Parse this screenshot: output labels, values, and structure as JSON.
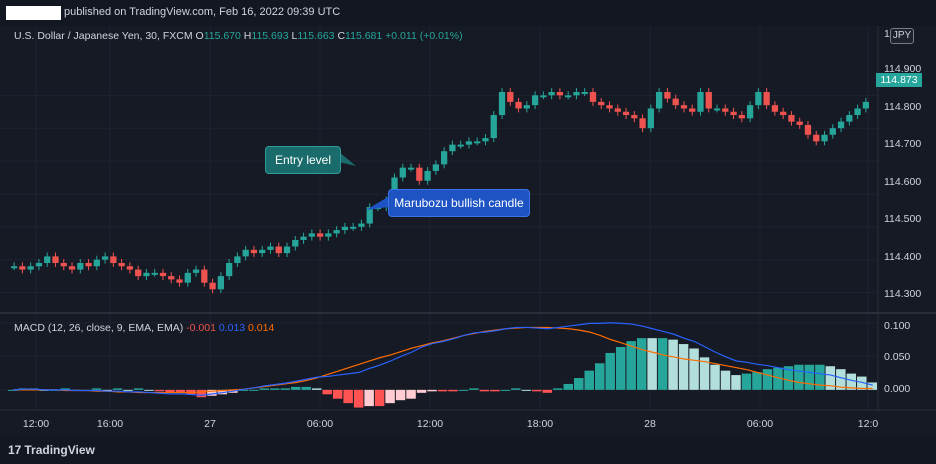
{
  "header": {
    "published_text": "published on TradingView.com, Feb 16, 2022 09:39 UTC"
  },
  "symbol": {
    "name": "U.S. Dollar / Japanese Yen, 30, FXCM",
    "open_label": "O",
    "open": "115.670",
    "high_label": "H",
    "high": "115.693",
    "low_label": "L",
    "low": "115.663",
    "close_label": "C",
    "close": "115.681",
    "change": "+0.011 (+0.01%)"
  },
  "currency_button": "JPY",
  "last_price": "114.873",
  "price_axis": [
    "114.900",
    "114.800",
    "114.700",
    "114.600",
    "114.500",
    "114.400",
    "114.300"
  ],
  "price_axis_top": "1",
  "macd": {
    "label": "MACD (12, 26, close, 9, EMA, EMA)",
    "hist_value": "-0.001",
    "macd_value": "0.013",
    "signal_value": "0.014",
    "axis": [
      "0.100",
      "0.050",
      "0.000"
    ]
  },
  "time_axis": [
    "12:00",
    "16:00",
    "27",
    "06:00",
    "12:00",
    "18:00",
    "28",
    "06:00",
    "12:0"
  ],
  "annotations": {
    "entry": "Entry level",
    "marubozu": "Marubozu bullish candle"
  },
  "footer": {
    "logo_mark": "17",
    "logo_text": "TradingView"
  },
  "colors": {
    "up": "#26a69a",
    "down": "#ef5350",
    "macd": "#2962ff",
    "signal": "#ff6d00",
    "background": "#161a25"
  },
  "chart_data": {
    "type": "candlestick",
    "symbol": "USDJPY",
    "ylim": [
      114.25,
      115.05
    ],
    "candles_close": [
      114.38,
      114.37,
      114.38,
      114.39,
      114.41,
      114.39,
      114.38,
      114.37,
      114.39,
      114.38,
      114.4,
      114.41,
      114.39,
      114.38,
      114.37,
      114.35,
      114.36,
      114.36,
      114.35,
      114.34,
      114.33,
      114.36,
      114.37,
      114.33,
      114.31,
      114.35,
      114.39,
      114.41,
      114.43,
      114.42,
      114.43,
      114.44,
      114.42,
      114.44,
      114.46,
      114.47,
      114.48,
      114.47,
      114.48,
      114.49,
      114.5,
      114.5,
      114.51,
      114.56,
      114.56,
      114.58,
      114.65,
      114.68,
      114.68,
      114.64,
      114.67,
      114.69,
      114.73,
      114.75,
      114.75,
      114.76,
      114.76,
      114.77,
      114.84,
      114.91,
      114.88,
      114.86,
      114.87,
      114.9,
      114.9,
      114.91,
      114.9,
      114.9,
      114.91,
      114.91,
      114.88,
      114.87,
      114.86,
      114.85,
      114.84,
      114.83,
      114.8,
      114.86,
      114.91,
      114.89,
      114.87,
      114.86,
      114.85,
      114.91,
      114.86,
      114.86,
      114.85,
      114.84,
      114.83,
      114.87,
      114.91,
      114.87,
      114.85,
      114.84,
      114.82,
      114.81,
      114.78,
      114.76,
      114.78,
      114.8,
      114.82,
      114.84,
      114.86,
      114.88
    ],
    "macd": [
      0.0,
      0.001,
      0.001,
      0.0,
      0.0,
      0.0,
      -0.001,
      -0.001,
      -0.001,
      -0.002,
      -0.002,
      -0.003,
      -0.003,
      -0.004,
      -0.005,
      -0.006,
      -0.006,
      -0.007,
      -0.008,
      -0.006,
      -0.004,
      -0.002,
      0.001,
      0.003,
      0.006,
      0.008,
      0.01,
      0.013,
      0.016,
      0.019,
      0.02,
      0.022,
      0.024,
      0.026,
      0.032,
      0.037,
      0.043,
      0.05,
      0.056,
      0.064,
      0.069,
      0.072,
      0.076,
      0.081,
      0.085,
      0.086,
      0.088,
      0.091,
      0.093,
      0.093,
      0.092,
      0.091,
      0.093,
      0.095,
      0.097,
      0.099,
      0.099,
      0.1,
      0.099,
      0.098,
      0.095,
      0.091,
      0.087,
      0.083,
      0.077,
      0.072,
      0.064,
      0.056,
      0.049,
      0.043,
      0.041,
      0.038,
      0.036,
      0.033,
      0.03,
      0.028,
      0.026,
      0.024,
      0.022,
      0.018,
      0.014,
      0.011,
      0.007,
      0.004,
      0.001,
      -0.004,
      -0.006,
      -0.004,
      -0.001,
      0.001,
      0.005
    ],
    "signal": [
      0.0,
      0.0,
      0.0,
      0.0,
      0.0,
      -0.001,
      -0.001,
      -0.001,
      -0.002,
      -0.002,
      -0.003,
      -0.003,
      -0.004,
      -0.004,
      -0.004,
      -0.004,
      -0.004,
      -0.004,
      -0.003,
      -0.002,
      -0.001,
      0.0,
      0.001,
      0.003,
      0.005,
      0.007,
      0.009,
      0.011,
      0.014,
      0.018,
      0.023,
      0.028,
      0.033,
      0.038,
      0.043,
      0.048,
      0.052,
      0.057,
      0.062,
      0.066,
      0.07,
      0.073,
      0.077,
      0.081,
      0.084,
      0.087,
      0.089,
      0.091,
      0.092,
      0.093,
      0.093,
      0.093,
      0.092,
      0.091,
      0.089,
      0.086,
      0.081,
      0.075,
      0.07,
      0.065,
      0.06,
      0.056,
      0.052,
      0.049,
      0.046,
      0.044,
      0.042,
      0.039,
      0.036,
      0.033,
      0.03,
      0.026,
      0.022,
      0.018,
      0.014,
      0.011,
      0.009,
      0.007,
      0.006,
      0.004,
      0.003,
      0.002,
      0.002
    ]
  }
}
